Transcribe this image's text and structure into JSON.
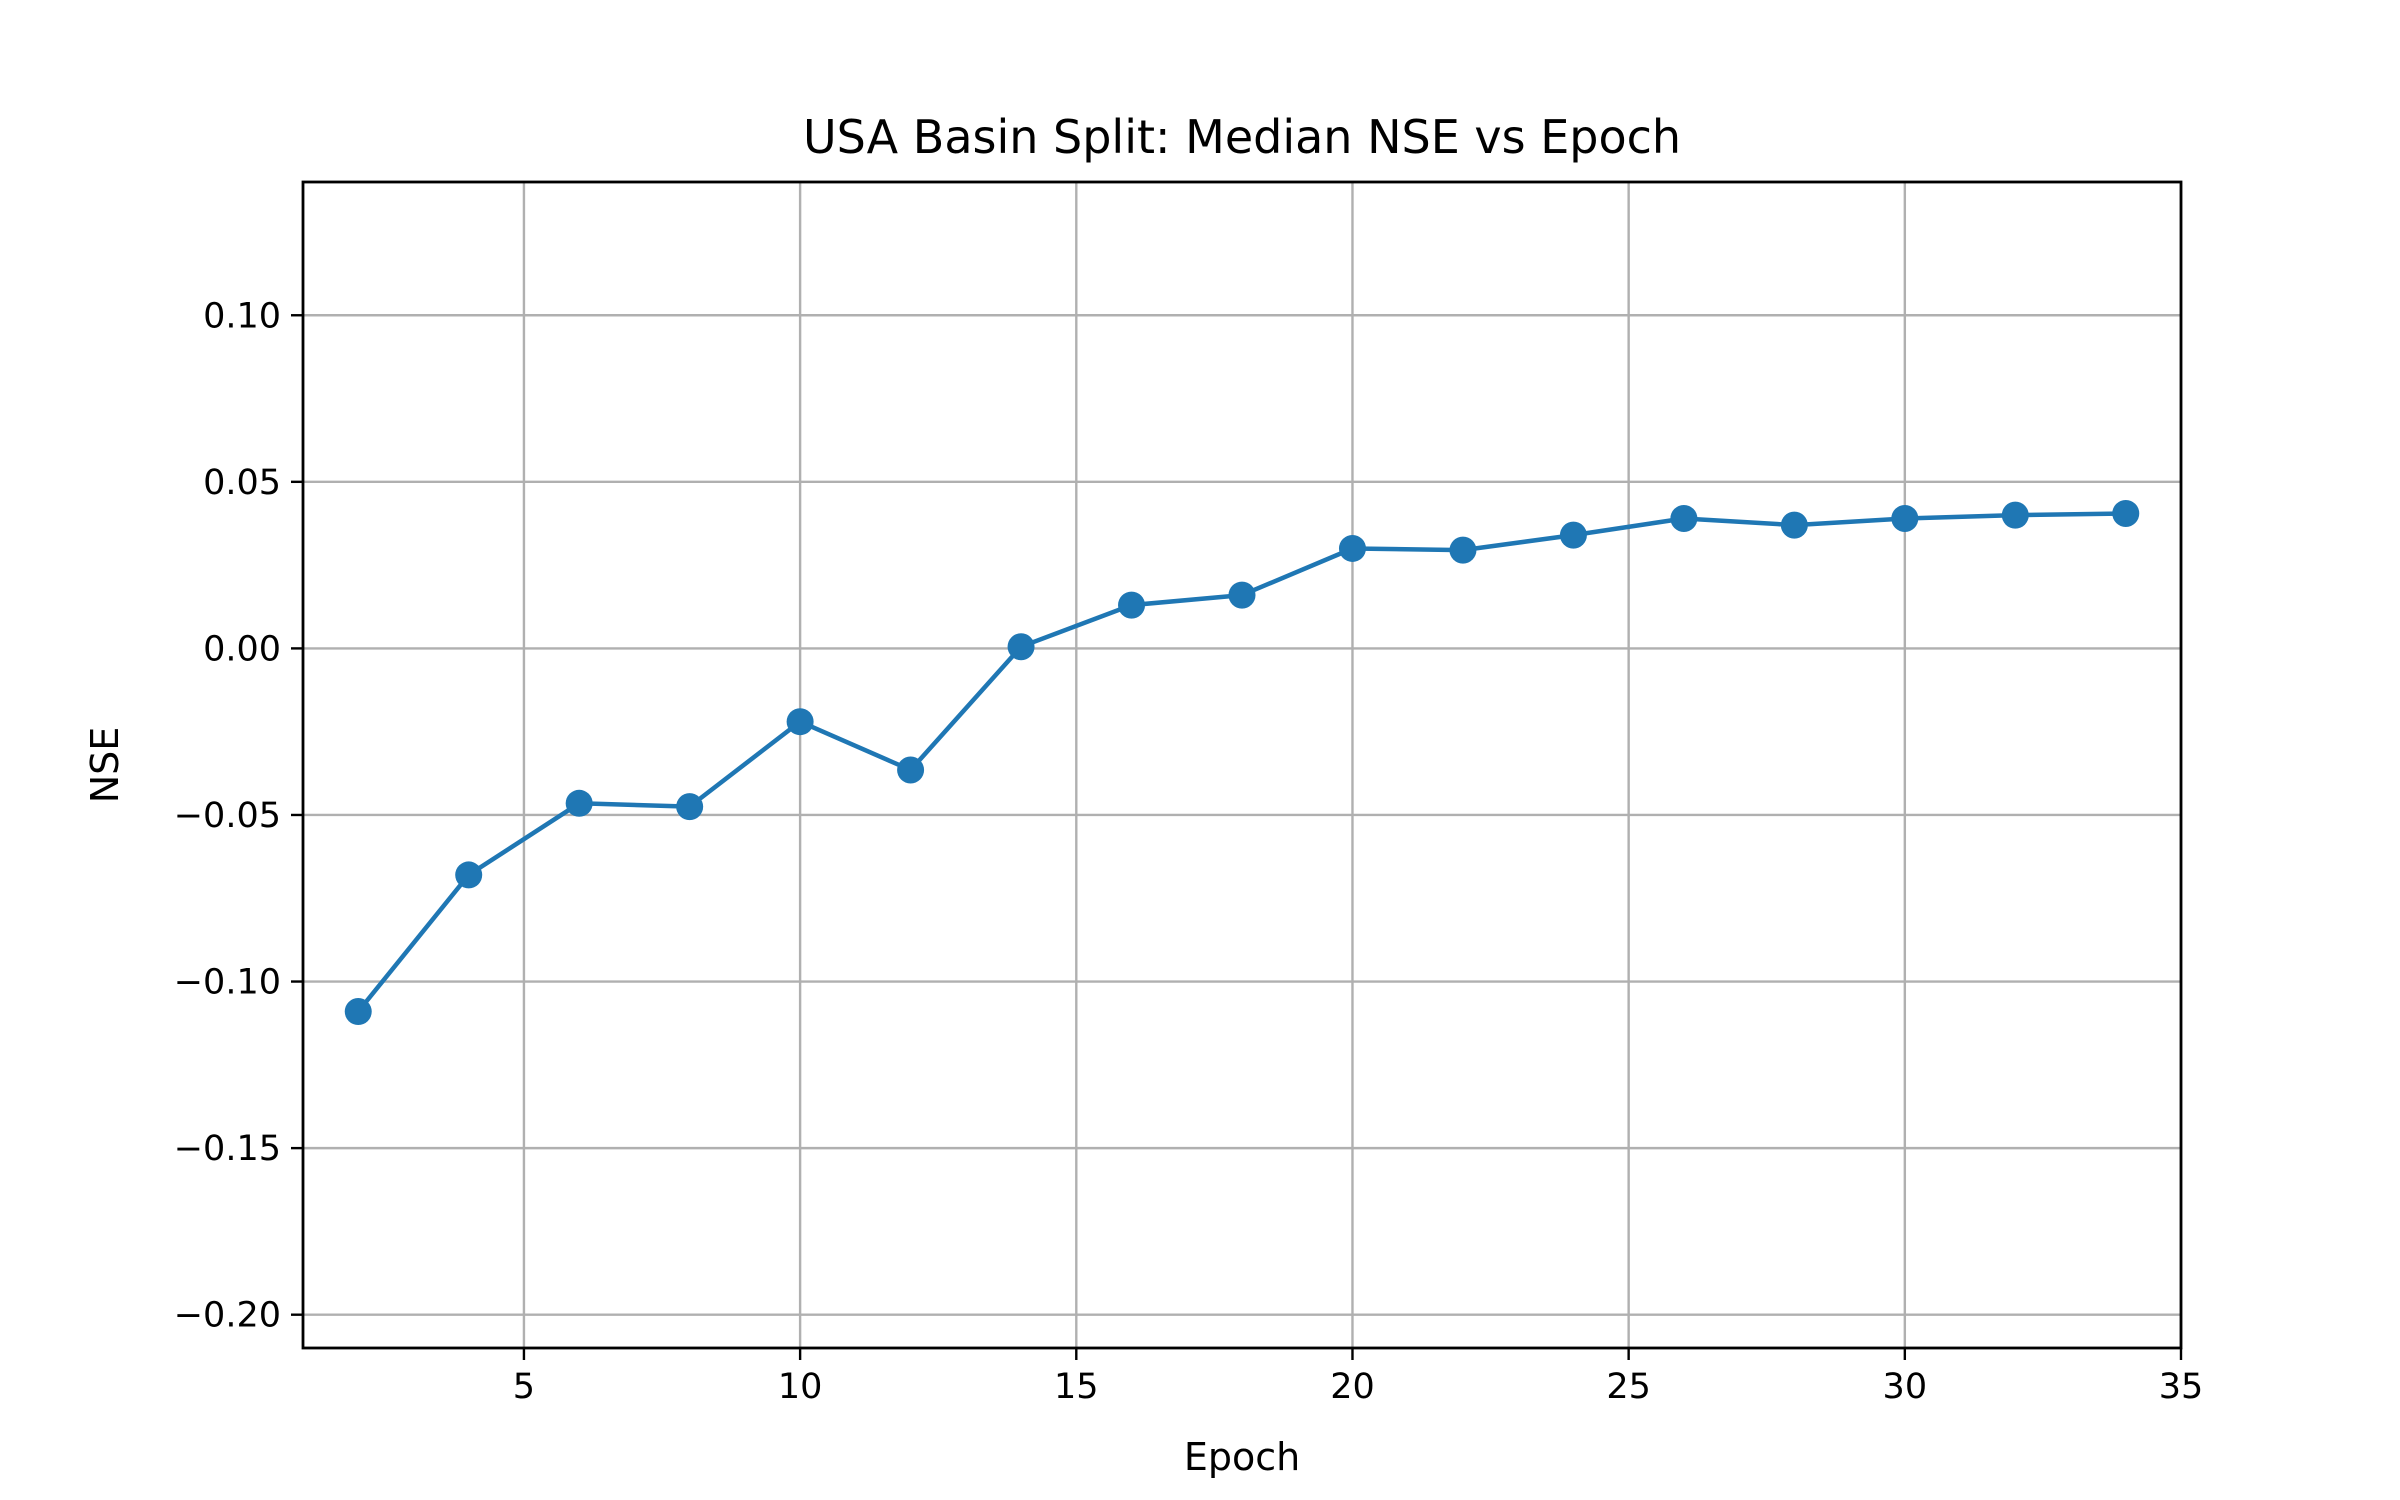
{
  "chart_data": {
    "type": "line",
    "title": "USA Basin Split: Median NSE vs Epoch",
    "xlabel": "Epoch",
    "ylabel": "NSE",
    "xlim": [
      1,
      35
    ],
    "ylim": [
      -0.21,
      0.14
    ],
    "x_ticks": [
      5,
      10,
      15,
      20,
      25,
      30,
      35
    ],
    "x_tick_labels": [
      "5",
      "10",
      "15",
      "20",
      "25",
      "30",
      "35"
    ],
    "y_ticks": [
      -0.2,
      -0.15,
      -0.1,
      -0.05,
      0.0,
      0.05,
      0.1
    ],
    "y_tick_labels": [
      "−0.20",
      "−0.15",
      "−0.10",
      "−0.05",
      "0.00",
      "0.05",
      "0.10"
    ],
    "grid": true,
    "legend": "none",
    "series": [
      {
        "color": "#1f77b4",
        "marker": "circle",
        "x": [
          2,
          4,
          6,
          8,
          10,
          12,
          14,
          16,
          18,
          20,
          22,
          24,
          26,
          28,
          30,
          32,
          34
        ],
        "y": [
          -0.109,
          -0.068,
          -0.0465,
          -0.0475,
          -0.022,
          -0.0365,
          0.0005,
          0.013,
          0.016,
          0.03,
          0.0295,
          0.034,
          0.039,
          0.037,
          0.039,
          0.04,
          0.0405
        ]
      }
    ]
  }
}
